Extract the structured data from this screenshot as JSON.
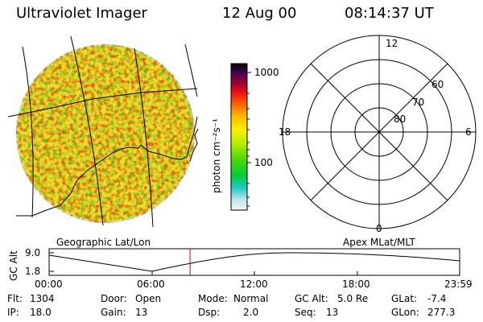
{
  "header": {
    "instrument": "Ultraviolet Imager",
    "date": "12 Aug 00",
    "time": "08:14:37 UT"
  },
  "colorbar": {
    "unit_label": "photon cm⁻²s⁻¹",
    "ticks": [
      "1000",
      "100"
    ],
    "scale": "log"
  },
  "polar_plot": {
    "mlt_labels": [
      "12",
      "18",
      "6",
      "0"
    ],
    "mlat_labels": [
      "60",
      "70",
      "80"
    ],
    "caption": "Apex MLat/MLT"
  },
  "map_plot": {
    "caption": "Geographic Lat/Lon"
  },
  "altitude_plot": {
    "ylabel": "GC Alt",
    "y_ticks": [
      "9.0",
      "1.8"
    ],
    "x_ticks": [
      "00:00",
      "06:00",
      "12:00",
      "18:00",
      "23:59"
    ],
    "ylim": [
      1.8,
      9.0
    ],
    "current_time_hours": 8.24
  },
  "status": {
    "flt_label": "Flt:",
    "flt_value": "1304",
    "ip_label": "IP:",
    "ip_value": "18.0",
    "door_label": "Door:",
    "door_value": "Open",
    "gain_label": "Gain:",
    "gain_value": "13",
    "mode_label": "Mode:",
    "mode_value": "Normal",
    "dsp_label": "Dsp:",
    "dsp_value": "2.0",
    "gcalt_label": "GC Alt:",
    "gcalt_value": "5.0 Re",
    "seq_label": "Seq:",
    "seq_value": "13",
    "glat_label": "GLat:",
    "glat_value": "-7.4",
    "glon_label": "GLon:",
    "glon_value": "277.3"
  },
  "colors": {
    "marker": "#cc0000",
    "land": "#000000"
  }
}
